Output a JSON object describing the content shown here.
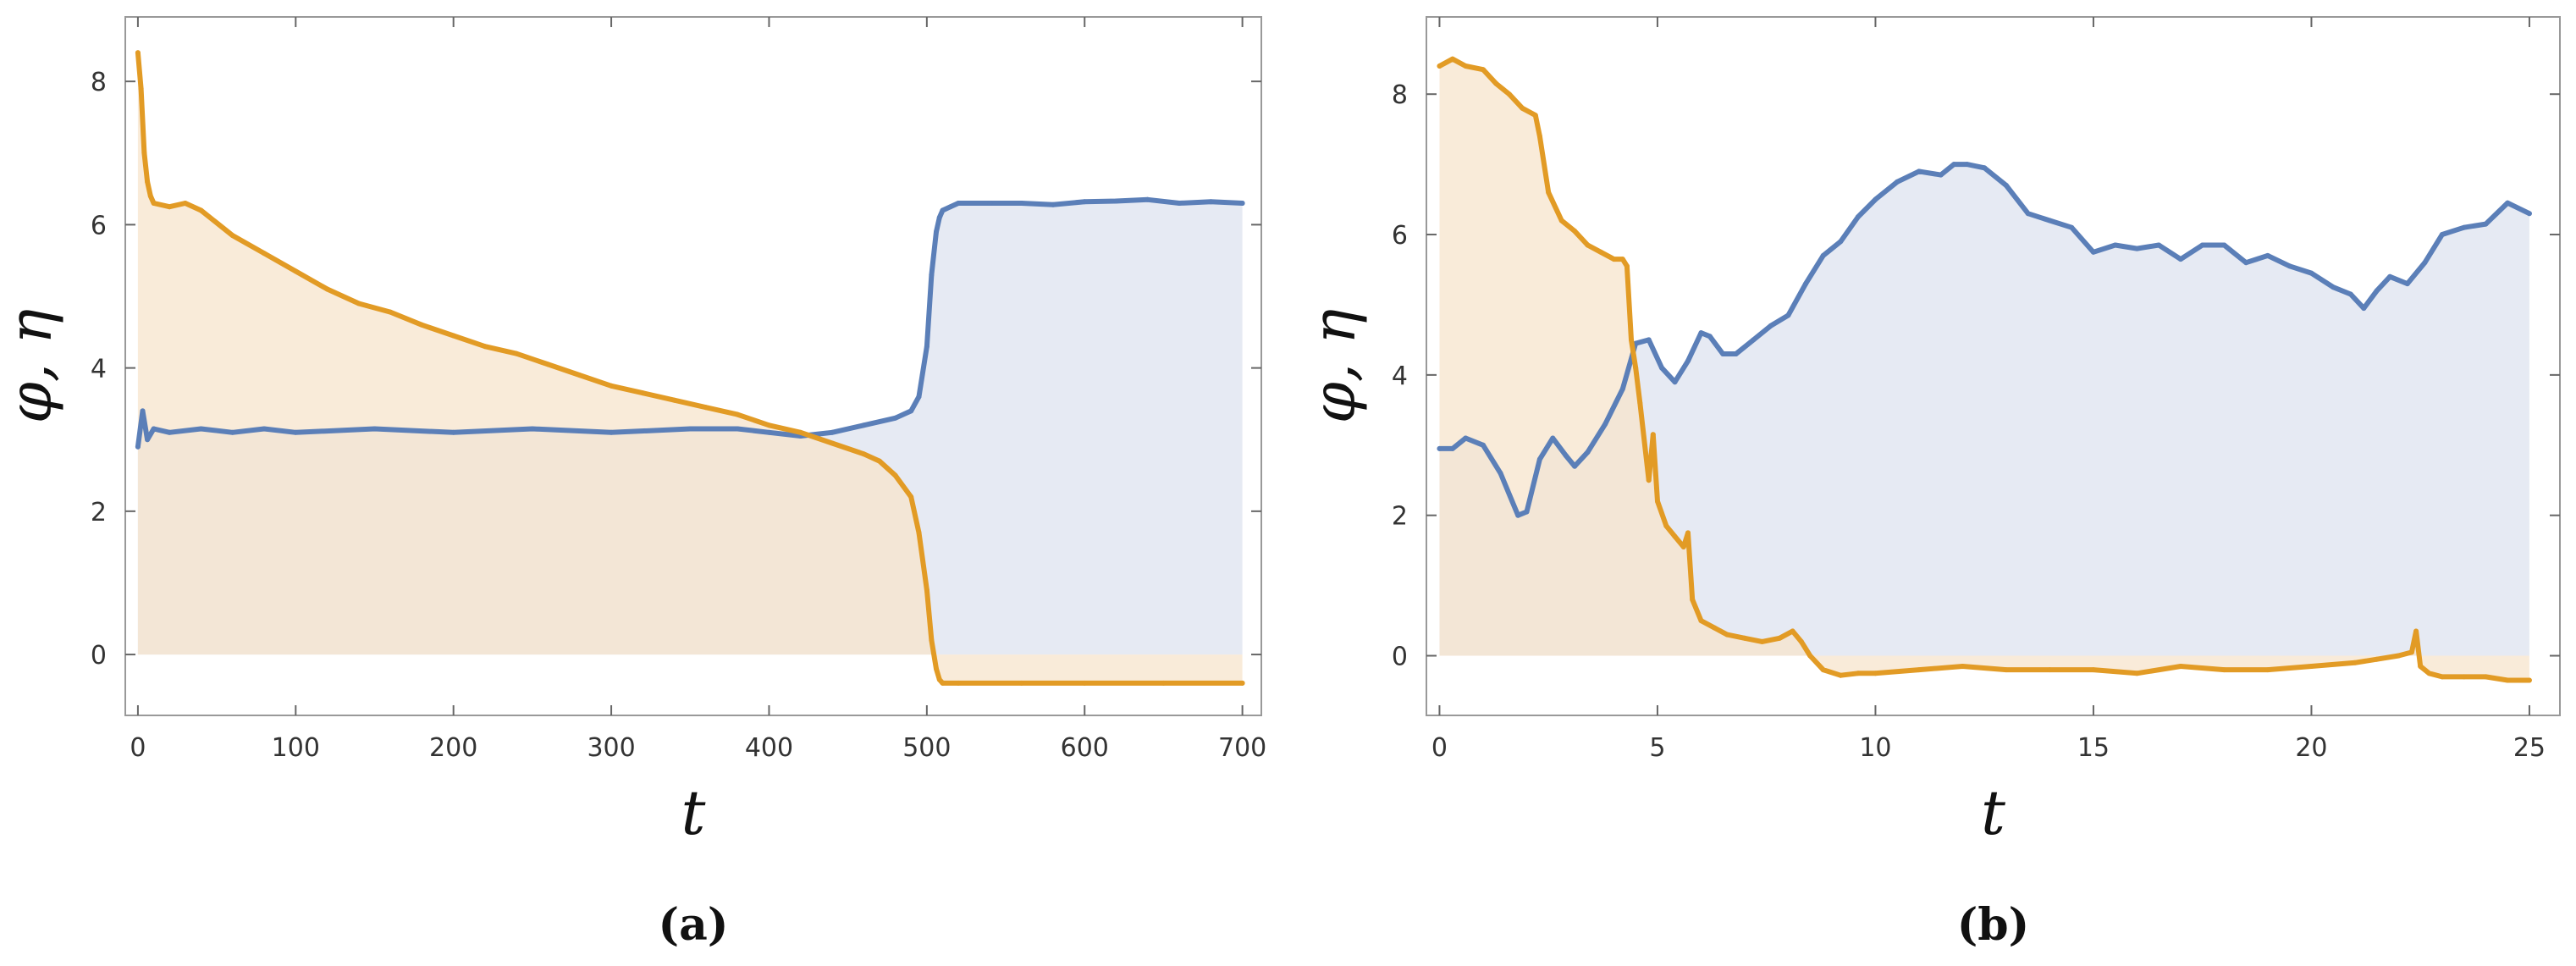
{
  "colors": {
    "phi": "#5B7FB8",
    "eta": "#E29B25",
    "phi_fill": "#DDE3EF",
    "eta_fill": "#F7E4CC",
    "frame": "#999999",
    "tick": "#666666"
  },
  "chart_data": [
    {
      "type": "area",
      "panel_label": "(a)",
      "xlabel": "t",
      "ylabel": "φ, η",
      "xlim": [
        -8,
        712
      ],
      "ylim": [
        -0.85,
        8.9
      ],
      "xticks": [
        0,
        100,
        200,
        300,
        400,
        500,
        600,
        700
      ],
      "yticks": [
        0,
        2,
        4,
        6,
        8
      ],
      "grid": false,
      "legend": "none",
      "fill_to": 0,
      "series": [
        {
          "color_key": "phi",
          "x": [
            0,
            3,
            6,
            10,
            20,
            40,
            60,
            80,
            100,
            150,
            200,
            250,
            300,
            350,
            380,
            400,
            420,
            440,
            460,
            480,
            490,
            495,
            500,
            503,
            506,
            508,
            510,
            515,
            520,
            540,
            560,
            580,
            600,
            620,
            640,
            660,
            680,
            700
          ],
          "y": [
            2.9,
            3.4,
            3.0,
            3.15,
            3.1,
            3.15,
            3.1,
            3.15,
            3.1,
            3.15,
            3.1,
            3.15,
            3.1,
            3.15,
            3.15,
            3.1,
            3.05,
            3.1,
            3.2,
            3.3,
            3.4,
            3.6,
            4.3,
            5.3,
            5.9,
            6.1,
            6.2,
            6.25,
            6.3,
            6.3,
            6.3,
            6.28,
            6.32,
            6.33,
            6.35,
            6.3,
            6.32,
            6.3
          ]
        },
        {
          "color_key": "eta",
          "x": [
            0,
            2,
            4,
            6,
            8,
            10,
            20,
            30,
            40,
            60,
            80,
            100,
            120,
            140,
            160,
            180,
            200,
            220,
            240,
            260,
            280,
            300,
            320,
            340,
            360,
            380,
            400,
            420,
            440,
            460,
            470,
            480,
            490,
            495,
            500,
            503,
            506,
            508,
            510,
            520,
            560,
            600,
            650,
            700
          ],
          "y": [
            8.4,
            7.9,
            7.0,
            6.6,
            6.4,
            6.3,
            6.25,
            6.3,
            6.2,
            5.85,
            5.6,
            5.35,
            5.1,
            4.9,
            4.78,
            4.6,
            4.45,
            4.3,
            4.2,
            4.05,
            3.9,
            3.75,
            3.65,
            3.55,
            3.45,
            3.35,
            3.2,
            3.1,
            2.95,
            2.8,
            2.7,
            2.5,
            2.2,
            1.7,
            0.9,
            0.2,
            -0.2,
            -0.35,
            -0.4,
            -0.4,
            -0.4,
            -0.4,
            -0.4,
            -0.4
          ]
        }
      ]
    },
    {
      "type": "area",
      "panel_label": "(b)",
      "xlabel": "t",
      "ylabel": "φ, η",
      "xlim": [
        -0.3,
        25.7
      ],
      "ylim": [
        -0.85,
        9.1
      ],
      "xticks": [
        0,
        5,
        10,
        15,
        20,
        25
      ],
      "yticks": [
        0,
        2,
        4,
        6,
        8
      ],
      "grid": false,
      "legend": "none",
      "fill_to": 0,
      "series": [
        {
          "color_key": "phi",
          "x": [
            0,
            0.3,
            0.6,
            1.0,
            1.4,
            1.8,
            2.0,
            2.3,
            2.6,
            2.9,
            3.1,
            3.4,
            3.8,
            4.2,
            4.5,
            4.8,
            5.1,
            5.4,
            5.7,
            6.0,
            6.2,
            6.5,
            6.8,
            7.2,
            7.6,
            8.0,
            8.4,
            8.8,
            9.2,
            9.6,
            10.0,
            10.5,
            11.0,
            11.5,
            11.8,
            12.1,
            12.5,
            13.0,
            13.5,
            14.0,
            14.5,
            15.0,
            15.5,
            16.0,
            16.5,
            17.0,
            17.5,
            18.0,
            18.5,
            19.0,
            19.5,
            20.0,
            20.5,
            20.9,
            21.2,
            21.5,
            21.8,
            22.2,
            22.6,
            23.0,
            23.5,
            24.0,
            24.5,
            25.0
          ],
          "y": [
            2.95,
            2.95,
            3.1,
            3.0,
            2.6,
            2.0,
            2.05,
            2.8,
            3.1,
            2.85,
            2.7,
            2.9,
            3.3,
            3.8,
            4.45,
            4.5,
            4.1,
            3.9,
            4.2,
            4.6,
            4.55,
            4.3,
            4.3,
            4.5,
            4.7,
            4.85,
            5.3,
            5.7,
            5.9,
            6.25,
            6.5,
            6.75,
            6.9,
            6.85,
            7.0,
            7.0,
            6.95,
            6.7,
            6.3,
            6.2,
            6.1,
            5.75,
            5.85,
            5.8,
            5.85,
            5.65,
            5.85,
            5.85,
            5.6,
            5.7,
            5.55,
            5.45,
            5.25,
            5.15,
            4.95,
            5.2,
            5.4,
            5.3,
            5.6,
            6.0,
            6.1,
            6.15,
            6.45,
            6.3
          ]
        },
        {
          "color_key": "eta",
          "x": [
            0,
            0.3,
            0.6,
            1.0,
            1.3,
            1.6,
            1.9,
            2.2,
            2.3,
            2.5,
            2.8,
            3.1,
            3.4,
            3.7,
            4.0,
            4.2,
            4.3,
            4.4,
            4.5,
            4.6,
            4.8,
            4.9,
            5.0,
            5.2,
            5.4,
            5.6,
            5.7,
            5.8,
            6.0,
            6.3,
            6.6,
            7.0,
            7.4,
            7.8,
            8.1,
            8.3,
            8.5,
            8.8,
            9.2,
            9.6,
            10.0,
            11.0,
            12.0,
            13.0,
            14.0,
            15.0,
            16.0,
            17.0,
            18.0,
            19.0,
            20.0,
            21.0,
            21.5,
            22.0,
            22.3,
            22.4,
            22.5,
            22.7,
            23.0,
            23.5,
            24.0,
            24.5,
            25.0
          ],
          "y": [
            8.4,
            8.5,
            8.4,
            8.35,
            8.15,
            8.0,
            7.8,
            7.7,
            7.4,
            6.6,
            6.2,
            6.05,
            5.85,
            5.75,
            5.65,
            5.65,
            5.55,
            4.5,
            4.1,
            3.6,
            2.5,
            3.15,
            2.2,
            1.85,
            1.7,
            1.55,
            1.75,
            0.8,
            0.5,
            0.4,
            0.3,
            0.25,
            0.2,
            0.25,
            0.35,
            0.2,
            0.0,
            -0.2,
            -0.28,
            -0.25,
            -0.25,
            -0.2,
            -0.15,
            -0.2,
            -0.2,
            -0.2,
            -0.25,
            -0.15,
            -0.2,
            -0.2,
            -0.15,
            -0.1,
            -0.05,
            0.0,
            0.05,
            0.35,
            -0.15,
            -0.25,
            -0.3,
            -0.3,
            -0.3,
            -0.35,
            -0.35
          ]
        }
      ]
    }
  ]
}
